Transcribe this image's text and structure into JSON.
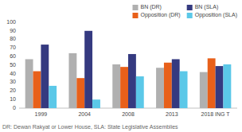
{
  "chart_data": {
    "type": "bar",
    "categories": [
      "1999",
      "2004",
      "2008",
      "2013",
      "2018 ING T"
    ],
    "series": [
      {
        "name": "BN (DR)",
        "color": "#b0b0b0",
        "values": [
          57,
          64,
          51,
          47,
          42
        ]
      },
      {
        "name": "Opposition (DR)",
        "color": "#e8601a",
        "values": [
          43,
          35,
          48,
          53,
          58
        ]
      },
      {
        "name": "BN (SLA)",
        "color": "#353a80",
        "values": [
          74,
          90,
          63,
          57,
          49
        ]
      },
      {
        "name": "Opposition (SLA)",
        "color": "#5bc8e8",
        "values": [
          26,
          10,
          37,
          43,
          51
        ]
      }
    ],
    "ylim": [
      0,
      100
    ],
    "yticks": [
      0,
      10,
      20,
      30,
      40,
      50,
      60,
      70,
      80,
      90,
      100
    ],
    "grid": false,
    "legend": "upper right",
    "annotations": [
      "DR: Dewan Rakyat or Lower House, SLA: State Legislative Assemblies"
    ]
  }
}
